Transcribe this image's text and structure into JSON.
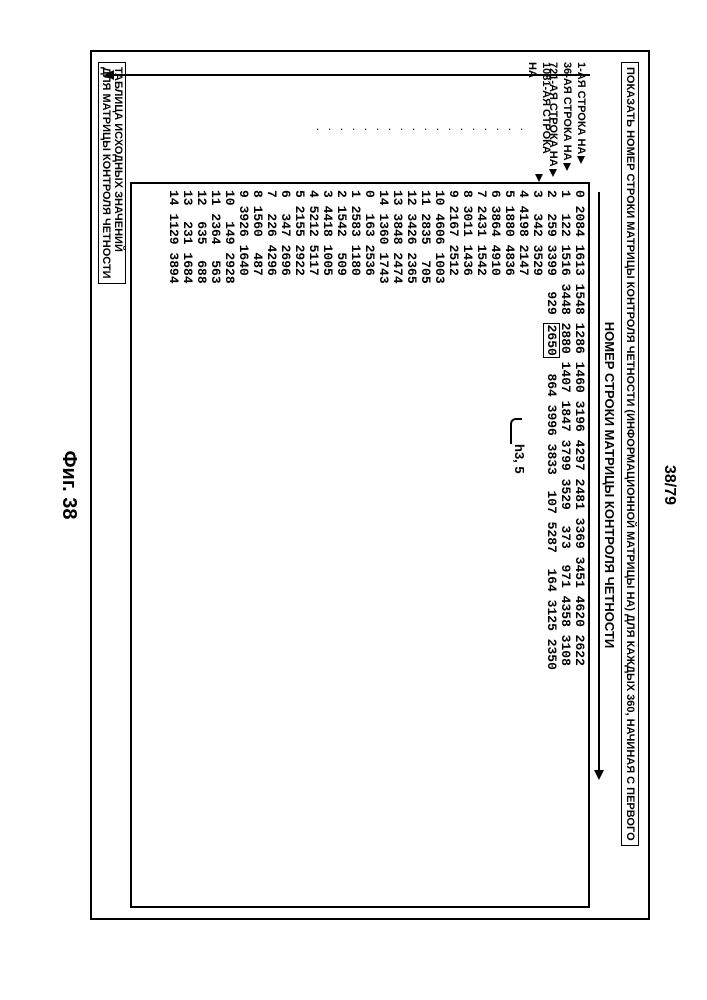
{
  "page_number": "38/79",
  "fig_caption": "Фиг. 38",
  "title": "ПОКАЗАТЬ НОМЕР СТРОКИ МАТРИЦЫ КОНТРОЛЯ ЧЕТНОСТИ (ИНФОРМАЦИОННОЙ МАТРИЦЫ HA) ДЛЯ КАЖДЫХ 360, НАЧИНАЯ С ПЕРВОГО",
  "subtitle": "НОМЕР СТРОКИ МАТРИЦЫ КОНТРОЛЯ ЧЕТНОСТИ",
  "row_labels": [
    "1-АЯ СТРОКА HA",
    "36-АЯ СТРОКА HA",
    "721-АЯ СТРОКА HA",
    "1081-АЯ СТРОКА HA"
  ],
  "annotation": "h3, 5",
  "boxed_value": "2650",
  "rows_upper": [
    "0 2084 1613 1548 1286 1460 3196 4297 2481 3369 3451 4620 2622",
    "1  122 1516 3448 2880 1407 1847 3799 3529  373  971 4358 3108",
    "2  259 3399  929 ",
    "  864 3996 3833  107 5287  164 3125 2350",
    "3  342 3529",
    "4 4198 2147",
    "5 1880 4836",
    "6 3864 4910",
    "7 2431 1542",
    "8 3011 1436",
    "9 2167 2512",
    "10 4606 1003",
    "11 2835  705",
    "12 3426 2365",
    "13 3848 2474",
    "14 1360 1743"
  ],
  "rows_lower": [
    "0  163 2536",
    "1 2583 1180",
    "2 1542  509",
    "3 4418 1005",
    "4 5212 5117",
    "5 2155 2922",
    "6  347 2696",
    "7  226 4296",
    "8 1560  487",
    "9 3926 1640",
    "10  149 2928",
    "11 2364  563",
    "12  635  688",
    "13  231 1684",
    "14 1129 3894"
  ],
  "bottom_caption_line1": "ТАБЛИЦА ИСХОДНЫХ ЗНАЧЕНИЙ",
  "bottom_caption_line2": "ДЛЯ МАТРИЦЫ КОНТРОЛЯ ЧЕТНОСТИ"
}
